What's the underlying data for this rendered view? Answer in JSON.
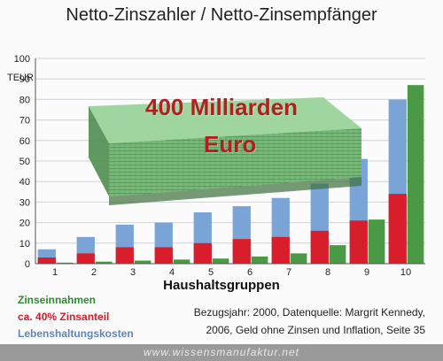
{
  "title": "Netto-Zinszahler  /  Netto-Zinsempfänger",
  "overlay": {
    "line1": "400 Milliarden",
    "line2": "Euro"
  },
  "legend": [
    "Zinseinnahmen",
    "ca. 40% Zinsanteil",
    "Lebenshaltungskosten"
  ],
  "source": {
    "line1": "Bezugsjahr: 2000, Datenquelle:  Margrit Kennedy,",
    "line2": "2006,  Geld ohne Zinsen und Inflation, Seite 35"
  },
  "footer": "www.wissensmanufaktur.net",
  "colors": {
    "zinseinnahmen": "#4a9a45",
    "zinsanteil": "#d81e2a",
    "lebenshaltungskosten": "#7aa3d6"
  },
  "chart_data": {
    "type": "bar",
    "xlabel": "Haushaltsgruppen",
    "ylabel": "TEUR",
    "ylim": [
      0,
      100
    ],
    "yticks": [
      0,
      10,
      20,
      30,
      40,
      50,
      60,
      70,
      80,
      90,
      100
    ],
    "categories": [
      "1",
      "2",
      "3",
      "4",
      "5",
      "6",
      "7",
      "8",
      "9",
      "10"
    ],
    "grid": true,
    "series": [
      {
        "name": "Lebenshaltungskosten",
        "values": [
          7,
          13,
          19,
          20,
          25,
          28,
          32,
          39,
          51,
          80
        ]
      },
      {
        "name": "ca. 40% Zinsanteil",
        "values": [
          3,
          5,
          8,
          8,
          10,
          12,
          13,
          16,
          21,
          34
        ]
      },
      {
        "name": "Zinseinnahmen",
        "values": [
          0.5,
          1,
          1.5,
          2,
          2.5,
          3.5,
          5,
          9,
          21.5,
          87
        ]
      }
    ]
  }
}
